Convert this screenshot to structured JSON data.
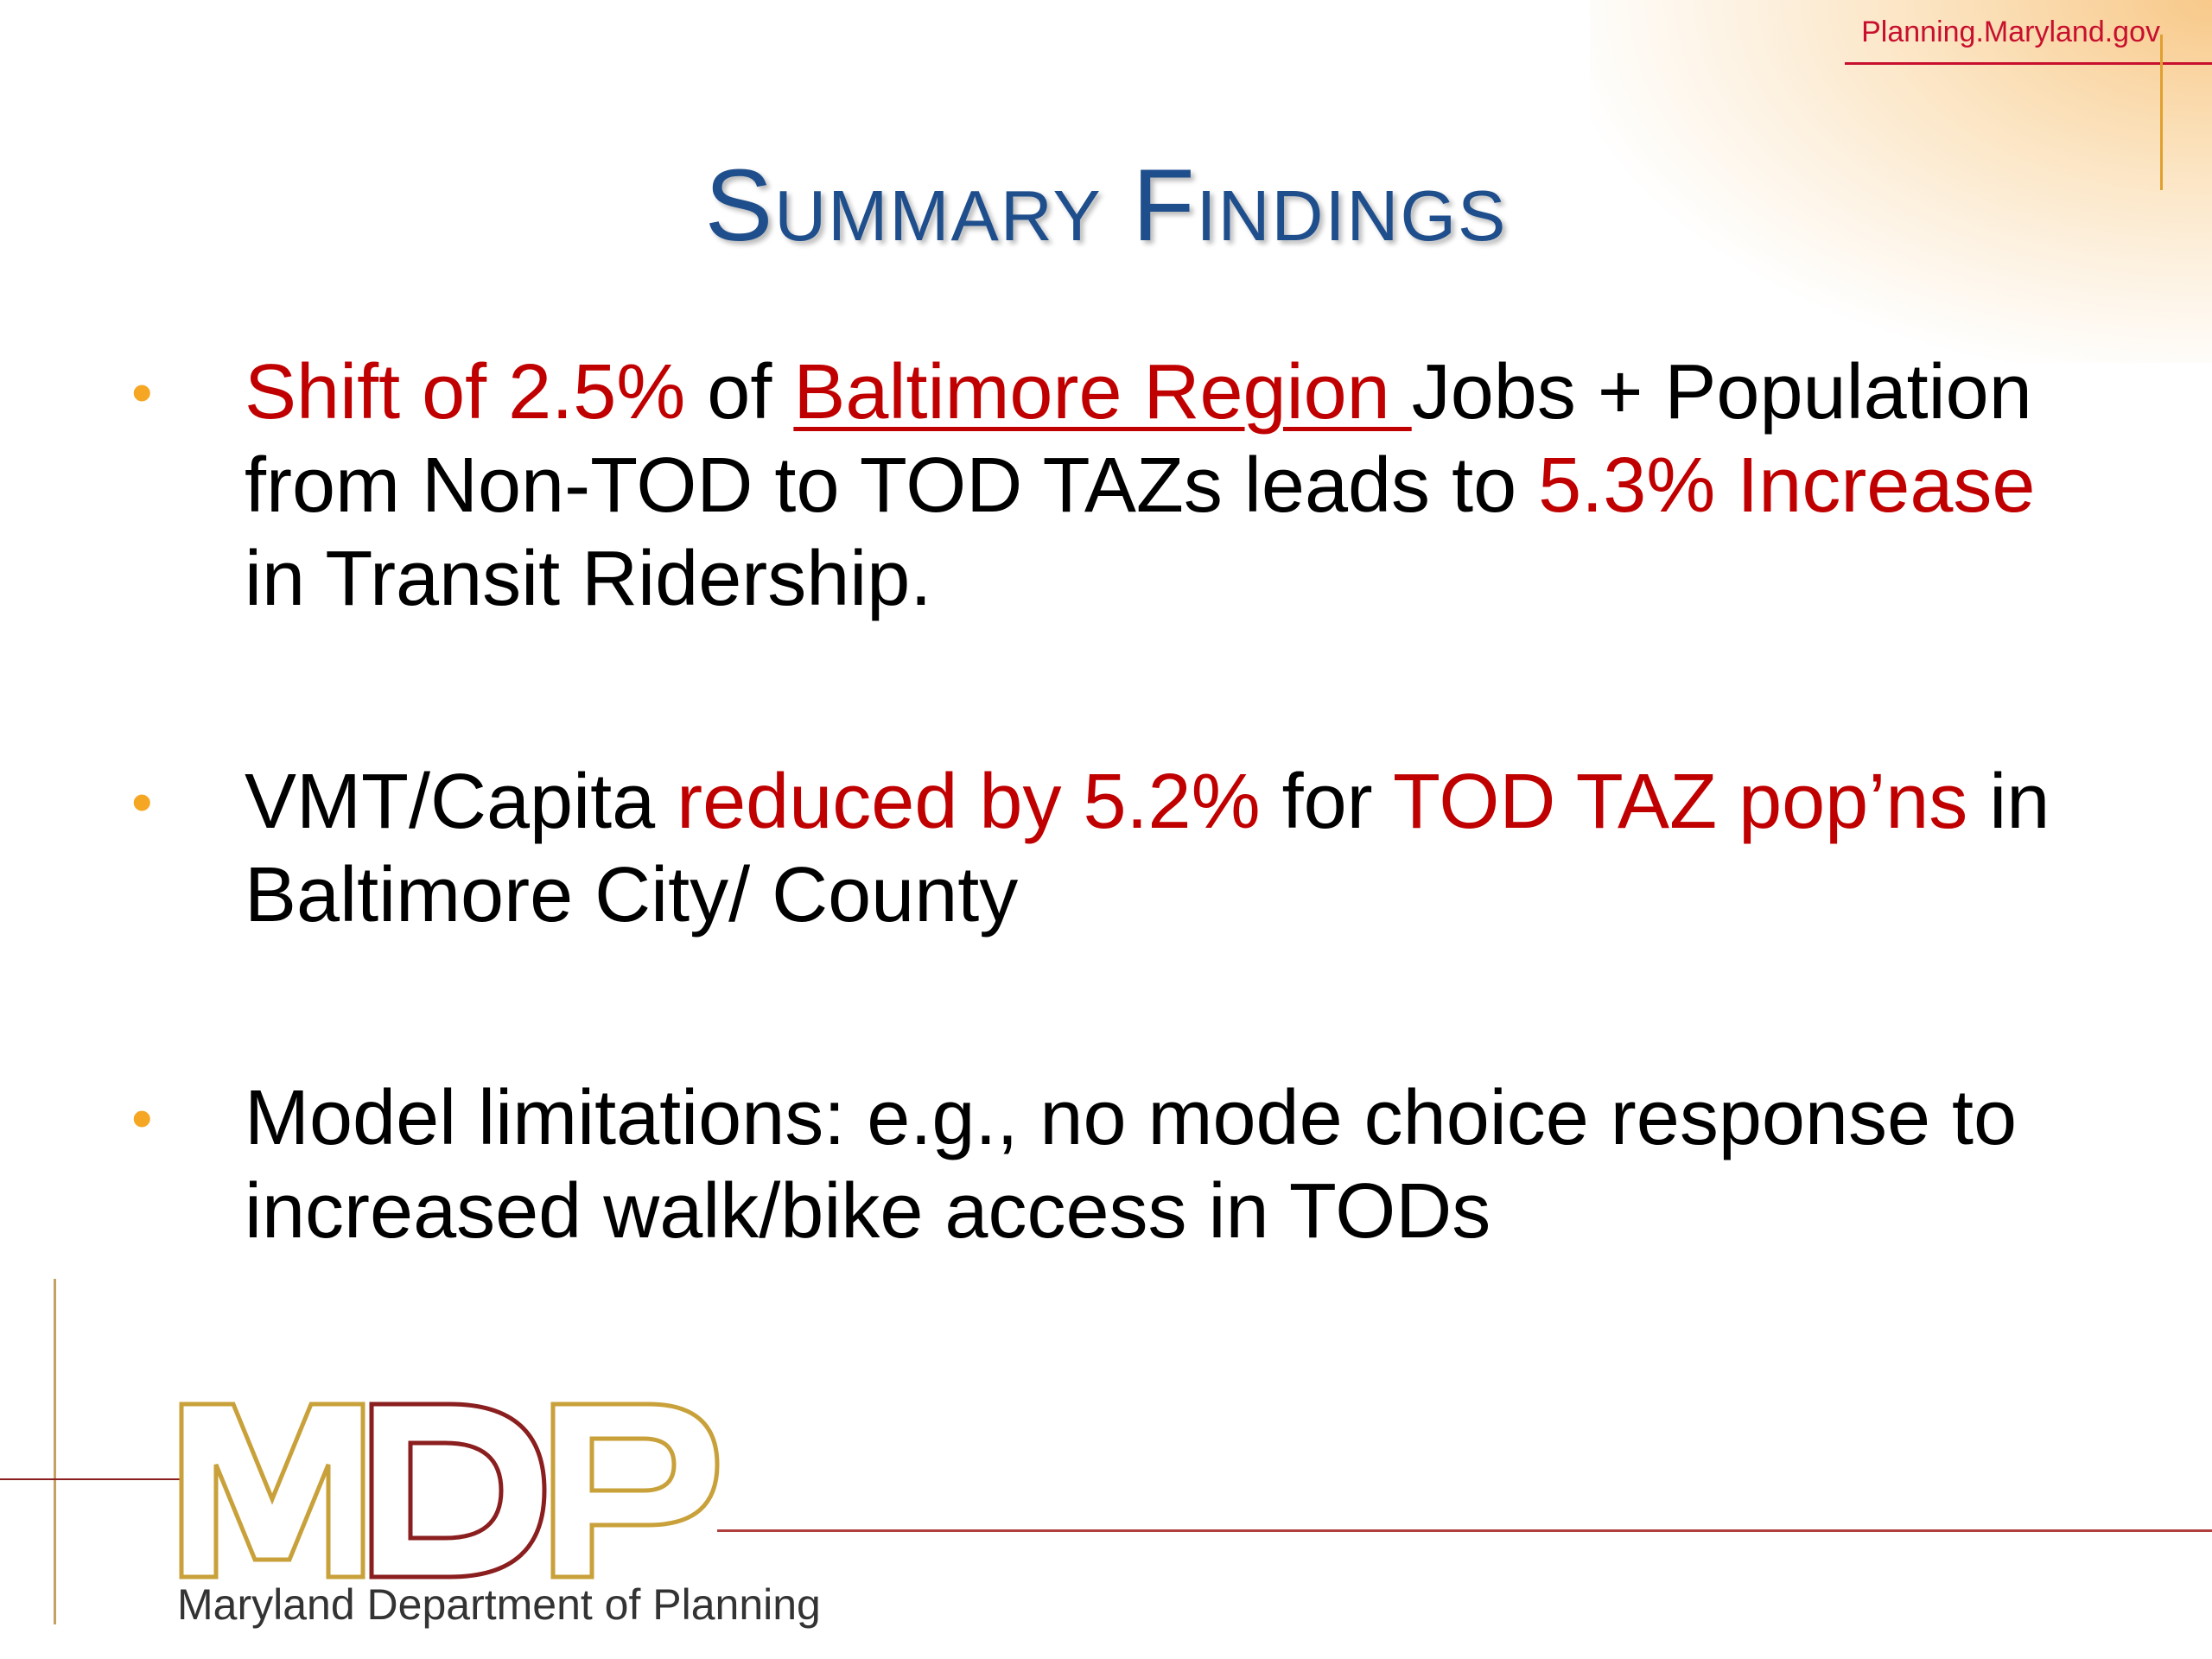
{
  "header": {
    "site_url": "Planning.Maryland.gov"
  },
  "slide": {
    "title": "Summary Findings",
    "bullets": [
      {
        "segments": [
          {
            "text": "Shift of 2.5%",
            "style": "red"
          },
          {
            "text": " of ",
            "style": "normal"
          },
          {
            "text": "Baltimore Region ",
            "style": "red-underline"
          },
          {
            "text": " Jobs + Population from Non-TOD to TOD TAZs leads to ",
            "style": "normal"
          },
          {
            "text": "5.3% Increase",
            "style": "red"
          },
          {
            "text": " in Transit Ridership.",
            "style": "normal"
          }
        ]
      },
      {
        "segments": [
          {
            "text": "VMT/Capita ",
            "style": "normal"
          },
          {
            "text": "reduced by 5.2%",
            "style": "red"
          },
          {
            "text": " for ",
            "style": "normal"
          },
          {
            "text": "TOD TAZ pop’ns",
            "style": "red"
          },
          {
            "text": " in Baltimore City/ County",
            "style": "normal"
          }
        ]
      },
      {
        "segments": [
          {
            "text": "Model limitations: e.g., no mode choice response to increased walk/bike access in TODs",
            "style": "normal"
          }
        ]
      }
    ]
  },
  "footer": {
    "logo_letters": [
      "M",
      "D",
      "P"
    ],
    "logo_caption": "Maryland Department of Planning"
  },
  "colors": {
    "title": "#1f4e8c",
    "highlight_red": "#c00000",
    "bullet_dot": "#f5a623",
    "url_red": "#c8102e",
    "logo_gold": "#c9a13a",
    "logo_maroon": "#8b1e1e"
  }
}
